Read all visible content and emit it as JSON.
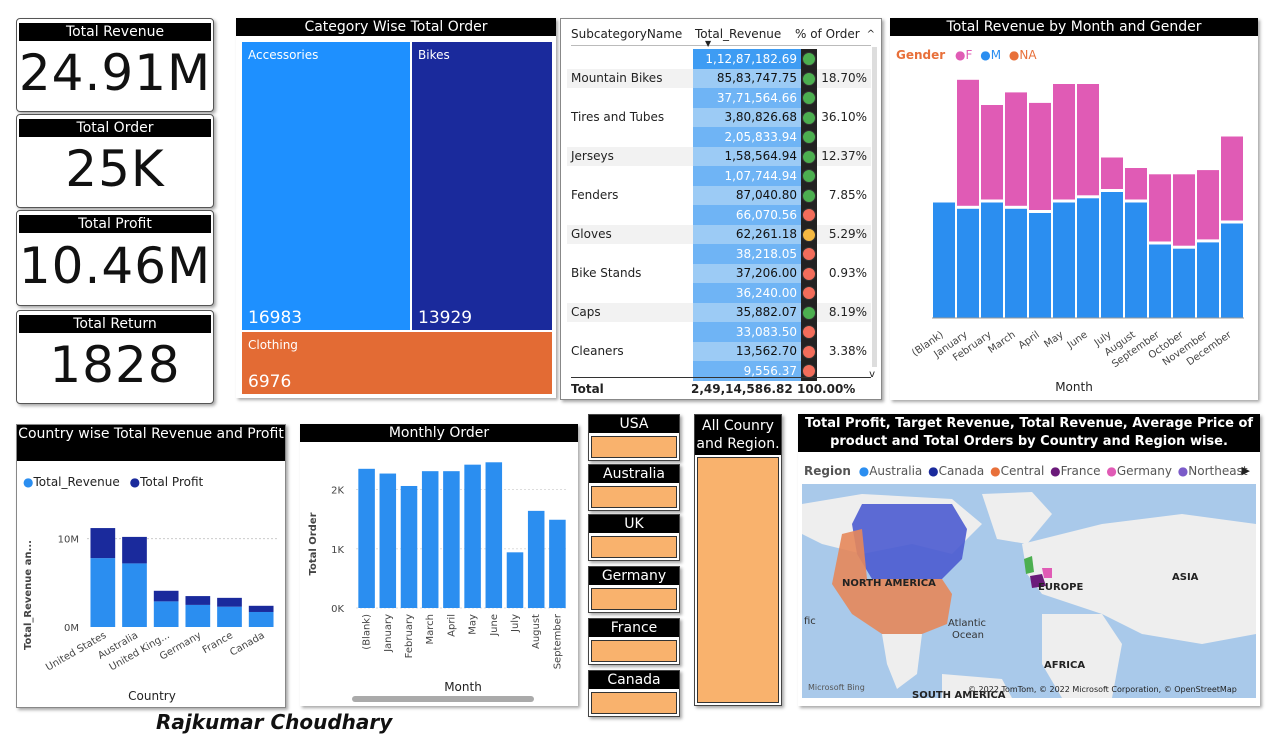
{
  "kpis": {
    "revenue": {
      "title": "Total Revenue",
      "value": "24.91M"
    },
    "orders": {
      "title": "Total Order",
      "value": "25K"
    },
    "profit": {
      "title": "Total Profit",
      "value": "10.46M"
    },
    "returns": {
      "title": "Total Return",
      "value": "1828"
    }
  },
  "treemap": {
    "title": "Category Wise Total Order",
    "cells": [
      {
        "label": "Accessories",
        "value": "16983",
        "color": "#1e90ff"
      },
      {
        "label": "Bikes",
        "value": "13929",
        "color": "#1a2a9c"
      },
      {
        "label": "Clothing",
        "value": "6976",
        "color": "#e36b34"
      }
    ]
  },
  "subtable": {
    "headers": [
      "SubcategoryName",
      "Total_Revenue",
      "% of Order"
    ],
    "rows": [
      {
        "name": "",
        "rev": "1,12,87,182.69",
        "dot": "#4caf50",
        "pct": "",
        "shade": "top"
      },
      {
        "name": "Mountain Bikes",
        "rev": "85,83,747.75",
        "dot": "#4caf50",
        "pct": "18.70%",
        "shade": ""
      },
      {
        "name": "",
        "rev": "37,71,564.66",
        "dot": "#4caf50",
        "pct": "",
        "shade": "light"
      },
      {
        "name": "Tires and Tubes",
        "rev": "3,80,826.68",
        "dot": "#4caf50",
        "pct": "36.10%",
        "shade": ""
      },
      {
        "name": "",
        "rev": "2,05,833.94",
        "dot": "#4caf50",
        "pct": "",
        "shade": "light"
      },
      {
        "name": "Jerseys",
        "rev": "1,58,564.94",
        "dot": "#4caf50",
        "pct": "12.37%",
        "shade": ""
      },
      {
        "name": "",
        "rev": "1,07,744.94",
        "dot": "#4caf50",
        "pct": "",
        "shade": "light"
      },
      {
        "name": "Fenders",
        "rev": "87,040.80",
        "dot": "#4caf50",
        "pct": "7.85%",
        "shade": ""
      },
      {
        "name": "",
        "rev": "66,070.56",
        "dot": "#f26d5b",
        "pct": "",
        "shade": "light"
      },
      {
        "name": "Gloves",
        "rev": "62,261.18",
        "dot": "#f5b942",
        "pct": "5.29%",
        "shade": ""
      },
      {
        "name": "",
        "rev": "38,218.05",
        "dot": "#f26d5b",
        "pct": "",
        "shade": "light"
      },
      {
        "name": "Bike Stands",
        "rev": "37,206.00",
        "dot": "#f26d5b",
        "pct": "0.93%",
        "shade": ""
      },
      {
        "name": "",
        "rev": "36,240.00",
        "dot": "#f26d5b",
        "pct": "",
        "shade": "light"
      },
      {
        "name": "Caps",
        "rev": "35,882.07",
        "dot": "#4caf50",
        "pct": "8.19%",
        "shade": ""
      },
      {
        "name": "",
        "rev": "33,083.50",
        "dot": "#f26d5b",
        "pct": "",
        "shade": "light"
      },
      {
        "name": "Cleaners",
        "rev": "13,562.70",
        "dot": "#f26d5b",
        "pct": "3.38%",
        "shade": ""
      },
      {
        "name": "",
        "rev": "9,556.37",
        "dot": "#f26d5b",
        "pct": "",
        "shade": "light"
      }
    ],
    "total": {
      "label": "Total",
      "rev": "2,49,14,586.82",
      "pct": "100.00%"
    }
  },
  "gender_chart": {
    "title": "Total Revenue by Month and Gender",
    "legend_title": "Gender",
    "legend": [
      {
        "name": "F",
        "color": "#e05bb5"
      },
      {
        "name": "M",
        "color": "#2b8ef0"
      },
      {
        "name": "NA",
        "color": "#e8703a"
      }
    ],
    "xlabel": "Month"
  },
  "country_chart": {
    "title": "Country wise Total Revenue and Profit",
    "legend": [
      {
        "name": "Total_Revenue",
        "color": "#2b8ef0"
      },
      {
        "name": "Total Profit",
        "color": "#1a2a9c"
      }
    ],
    "ylabel": "Total_Revenue an...",
    "xlabel": "Country",
    "yticks": [
      "10M",
      "0M"
    ]
  },
  "monthly_chart": {
    "title": "Monthly Order",
    "ylabel": "Total Order",
    "xlabel": "Month",
    "yticks": [
      "2K",
      "1K",
      "0K"
    ]
  },
  "slicer": {
    "countries": [
      "USA",
      "Australia",
      "UK",
      "Germany",
      "France",
      "Canada"
    ],
    "all_label_1": "All Counry",
    "all_label_2": "and Region."
  },
  "map": {
    "title_1": "Total Profit, Target Revenue, Total Revenue, Average Price of",
    "title_2": "product and Total Orders by Country and Region wise.",
    "legend_title": "Region",
    "legend": [
      {
        "name": "Australia",
        "color": "#2b8ef0"
      },
      {
        "name": "Canada",
        "color": "#1a2a9c"
      },
      {
        "name": "Central",
        "color": "#e8703a"
      },
      {
        "name": "France",
        "color": "#6b1a7a"
      },
      {
        "name": "Germany",
        "color": "#e05bb5"
      },
      {
        "name": "Northeast",
        "color": "#7b5bc9"
      }
    ],
    "labels": {
      "na": "NORTH AMERICA",
      "europe": "EUROPE",
      "asia": "ASIA",
      "atlantic1": "Atlantic",
      "atlantic2": "Ocean",
      "africa": "AFRICA",
      "sa": "SOUTH AMERICA",
      "fic": "fic"
    },
    "bing": "Microsoft Bing",
    "copyright": "© 2022 TomTom, © 2022 Microsoft Corporation, © OpenStreetMap"
  },
  "author": "Rajkumar Choudhary",
  "chart_data": [
    {
      "type": "area",
      "title": "Total Revenue by Month and Gender",
      "xlabel": "Month",
      "categories": [
        "(Blank)",
        "January",
        "February",
        "March",
        "April",
        "May",
        "June",
        "July",
        "August",
        "September",
        "October",
        "November",
        "December"
      ],
      "series": [
        {
          "name": "M",
          "values": [
            0.55,
            0.52,
            0.55,
            0.52,
            0.5,
            0.55,
            0.57,
            0.6,
            0.55,
            0.35,
            0.33,
            0.36,
            0.45
          ]
        },
        {
          "name": "F",
          "values": [
            0.0,
            0.6,
            0.45,
            0.54,
            0.51,
            0.55,
            0.53,
            0.15,
            0.15,
            0.32,
            0.34,
            0.33,
            0.4
          ]
        }
      ]
    },
    {
      "type": "bar",
      "title": "Country wise Total Revenue and Profit",
      "xlabel": "Country",
      "ylabel": "Total_Revenue an...",
      "categories": [
        "United States",
        "Australia",
        "United Kingdom",
        "Germany",
        "France",
        "Canada"
      ],
      "series": [
        {
          "name": "Total_Revenue",
          "values": [
            7.8,
            7.2,
            2.9,
            2.5,
            2.3,
            1.7
          ]
        },
        {
          "name": "Total Profit",
          "values": [
            3.4,
            3.0,
            1.2,
            1.0,
            1.0,
            0.7
          ]
        }
      ],
      "ylim": [
        0,
        12
      ],
      "stacked": true
    },
    {
      "type": "bar",
      "title": "Monthly Order",
      "xlabel": "Month",
      "ylabel": "Total Order",
      "categories": [
        "(Blank)",
        "January",
        "February",
        "March",
        "April",
        "May",
        "June",
        "July",
        "August",
        "September"
      ],
      "values": [
        2350,
        2270,
        2060,
        2310,
        2310,
        2420,
        2460,
        940,
        1640,
        1490
      ],
      "ylim": [
        0,
        2600
      ]
    }
  ]
}
